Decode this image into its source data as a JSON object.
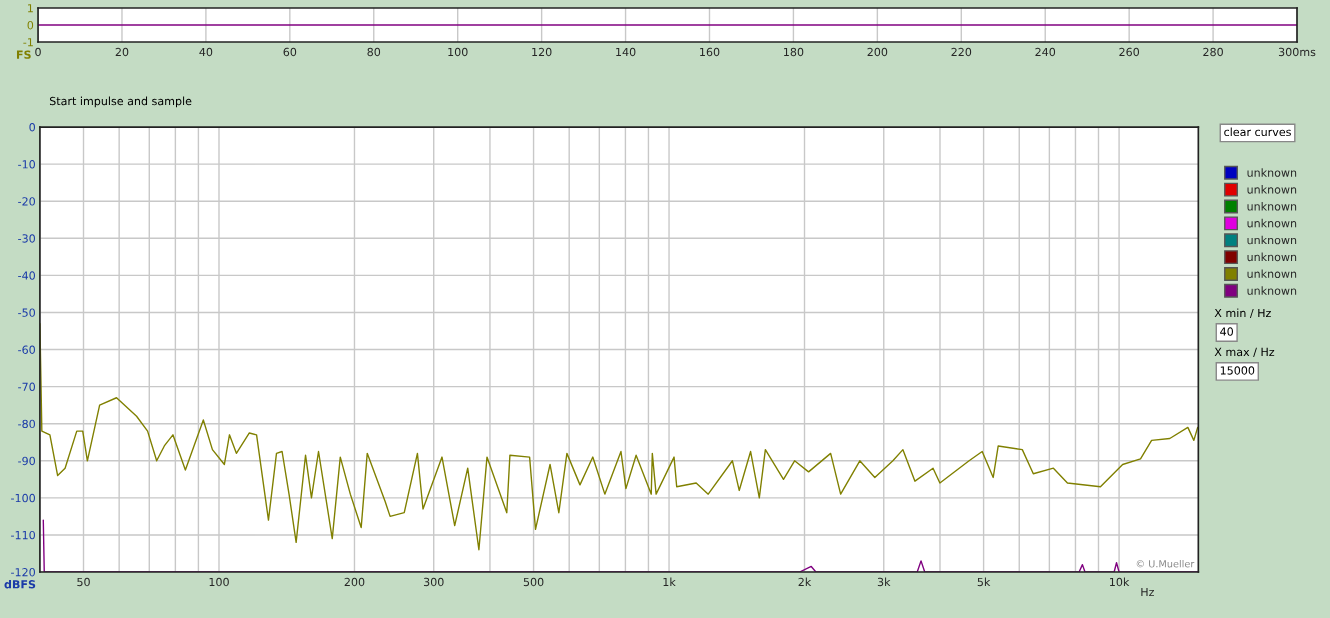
{
  "chart_data": [
    {
      "type": "line",
      "ylabel": "FS",
      "xlim": [
        0,
        300
      ],
      "ylim": [
        -1,
        1
      ],
      "xticks": [
        0,
        20,
        40,
        60,
        80,
        100,
        120,
        140,
        160,
        180,
        200,
        220,
        240,
        260,
        280,
        {
          "value": 300,
          "label": "300ms"
        }
      ],
      "yticks": [
        {
          "value": -1,
          "label": "-1"
        },
        0,
        1
      ],
      "grid": "x",
      "legend": false,
      "series": [
        {
          "color": "#800080",
          "x": [
            0,
            300
          ],
          "values": [
            0,
            0
          ]
        }
      ]
    },
    {
      "type": "line",
      "ylabel": "dBFS",
      "log": "x",
      "xlim": [
        40,
        15000
      ],
      "ylim": [
        -120,
        0
      ],
      "xticks": [
        {
          "value": 40,
          "label": null
        },
        50,
        {
          "value": 60,
          "label": null
        },
        {
          "value": 70,
          "label": null
        },
        {
          "value": 80,
          "label": null
        },
        {
          "value": 90,
          "label": null
        },
        100,
        200,
        300,
        {
          "value": 400,
          "label": null
        },
        500,
        {
          "value": 600,
          "label": null
        },
        {
          "value": 700,
          "label": null
        },
        {
          "value": 800,
          "label": null
        },
        {
          "value": 900,
          "label": null
        },
        {
          "value": 1000,
          "label": "1k"
        },
        {
          "value": 2000,
          "label": "2k"
        },
        {
          "value": 3000,
          "label": "3k"
        },
        {
          "value": 4000,
          "label": null
        },
        {
          "value": 5000,
          "label": "5k"
        },
        {
          "value": 6000,
          "label": null
        },
        {
          "value": 7000,
          "label": null
        },
        {
          "value": 8000,
          "label": null
        },
        {
          "value": 9000,
          "label": null
        },
        {
          "value": 10000,
          "label": "10k"
        }
      ],
      "xlabel": "Hz",
      "yticks": [
        {
          "value": -120,
          "label": "-120"
        },
        {
          "value": -110,
          "label": "-110"
        },
        {
          "value": -100,
          "label": "-100"
        },
        {
          "value": -90,
          "label": "-90"
        },
        {
          "value": -80,
          "label": "-80"
        },
        {
          "value": -70,
          "label": "-70"
        },
        {
          "value": -60,
          "label": "-60"
        },
        {
          "value": -50,
          "label": "-50"
        },
        {
          "value": -40,
          "label": "-40"
        },
        {
          "value": -30,
          "label": "-30"
        },
        {
          "value": -20,
          "label": "-20"
        },
        {
          "value": -10,
          "label": "-10"
        },
        0
      ],
      "grid": true,
      "legend": "right",
      "annotations": [
        "Start impulse and sample",
        "© U.Mueller",
        "clear curves",
        "X min / Hz",
        "40",
        "X max / Hz",
        "15000"
      ],
      "series": [
        {
          "name": "unknown",
          "color": "#0000c0"
        },
        {
          "name": "unknown",
          "color": "#e00000"
        },
        {
          "name": "unknown",
          "color": "#008000"
        },
        {
          "name": "unknown",
          "color": "#e000e0"
        },
        {
          "name": "unknown",
          "color": "#008080"
        },
        {
          "name": "unknown",
          "color": "#800000"
        },
        {
          "name": "unknown",
          "color": "#808000",
          "x": [
            40,
            40.4,
            42.1,
            43.8,
            45.5,
            48.3,
            49.8,
            51.0,
            54.3,
            59.2,
            65.6,
            69.4,
            72.7,
            75.6,
            79.0,
            84.2,
            92.3,
            96.7,
            102.8,
            105.5,
            109.3,
            116.8,
            121.2,
            128.8,
            134.2,
            138.1,
            143.1,
            148.4,
            155.7,
            160.5,
            166.4,
            178.5,
            186,
            195.8,
            207,
            213.5,
            234,
            240,
            258,
            276,
            284,
            313,
            334,
            357,
            378,
            394,
            436,
            443,
            490,
            505,
            544,
            569,
            593,
            634,
            677,
            720,
            782,
            802,
            845,
            913,
            918,
            936,
            1026,
            1040,
            1149,
            1222,
            1383,
            1432,
            1518,
            1587,
            1637,
            1796,
            1901,
            2042,
            2286,
            2406,
            2654,
            2866,
            3143,
            3309,
            3519,
            3860,
            3998,
            4642,
            4964,
            5252,
            5388,
            6095,
            6448,
            7146,
            7678,
            9091,
            10184,
            11160,
            11810,
            12960,
            14216,
            14660,
            14950
          ],
          "values": [
            -53,
            -82,
            -83,
            -94,
            -92,
            -82,
            -82,
            -90,
            -75,
            -73,
            -78,
            -82,
            -90,
            -86,
            -83,
            -92.5,
            -79,
            -87,
            -91,
            -83,
            -88,
            -82.5,
            -83,
            -106,
            -88,
            -87.5,
            -99,
            -112,
            -88.5,
            -100,
            -87.5,
            -111,
            -89,
            -99,
            -108,
            -88,
            -101,
            -105,
            -104,
            -88,
            -103,
            -89,
            -107.5,
            -92,
            -114,
            -89,
            -104,
            -88.5,
            -89,
            -108.5,
            -91,
            -104,
            -88,
            -96.5,
            -89,
            -99,
            -87.5,
            -97.5,
            -88.5,
            -99,
            -88,
            -99,
            -89,
            -97,
            -96,
            -99,
            -90,
            -98,
            -87.5,
            -100,
            -87,
            -95,
            -90,
            -93,
            -88,
            -99,
            -90,
            -94.5,
            -90,
            -87,
            -95.5,
            -92,
            -96,
            -90,
            -87.5,
            -94.5,
            -86,
            -87,
            -93.5,
            -92,
            -96,
            -97,
            -91,
            -89.5,
            -84.5,
            -84,
            -81,
            -84.5,
            -81
          ]
        },
        {
          "name": "unknown",
          "color": "#800080",
          "x": [
            40.7,
            40.9,
            41.2,
            1950,
            2070,
            2120,
            3560,
            3630,
            3700,
            8150,
            8290,
            8400,
            9750,
            9870,
            10000,
            15000
          ],
          "values": [
            -106,
            -120,
            -120,
            -120,
            -118.5,
            -120,
            -120,
            -117,
            -120,
            -120,
            -118,
            -120,
            -120,
            -117.5,
            -120,
            -120
          ]
        }
      ]
    }
  ]
}
